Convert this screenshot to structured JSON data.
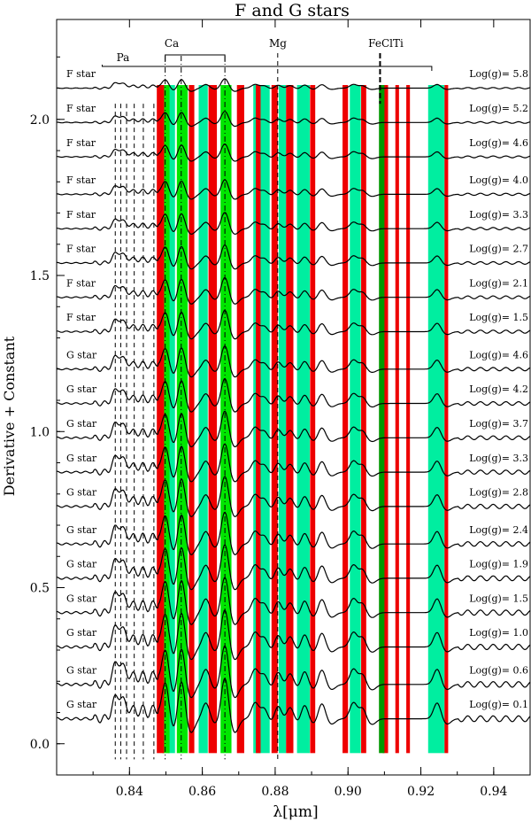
{
  "chart_data": {
    "type": "line",
    "title": "F and G stars",
    "xlabel": "λ[μm]",
    "ylabel": "Derivative + Constant",
    "xlim": [
      0.82,
      0.95
    ],
    "ylim": [
      -0.1,
      2.32
    ],
    "x_ticks": [
      0.84,
      0.86,
      0.88,
      0.9,
      0.92,
      0.94
    ],
    "x_tick_labels": [
      "0.84",
      "0.86",
      "0.88",
      "0.90",
      "0.92",
      "0.94"
    ],
    "y_ticks": [
      0.0,
      0.5,
      1.0,
      1.5,
      2.0
    ],
    "y_tick_labels": [
      "0.0",
      "0.5",
      "1.0",
      "1.5",
      "2.0"
    ],
    "line_annotations": {
      "pa": "Pa",
      "ca": "Ca",
      "mg": "Mg",
      "fecl": "FeClTi"
    },
    "paschen_lines": [
      0.8361,
      0.8376,
      0.8392,
      0.8413,
      0.8438,
      0.8467
    ],
    "ca_lines": [
      0.8498,
      0.8542,
      0.8662
    ],
    "mg_line": 0.8807,
    "fe_line": 0.9088,
    "green_bands": [
      [
        0.849,
        0.851
      ],
      [
        0.853,
        0.856
      ],
      [
        0.865,
        0.868
      ]
    ],
    "cyan_bands": [
      [
        0.8505,
        0.8525
      ],
      [
        0.859,
        0.8615
      ],
      [
        0.874,
        0.8785
      ],
      [
        0.881,
        0.883
      ],
      [
        0.886,
        0.8895
      ],
      [
        0.9005,
        0.9035
      ],
      [
        0.922,
        0.9265
      ]
    ],
    "red_bands": [
      [
        0.8475,
        0.8495
      ],
      [
        0.8563,
        0.8578
      ],
      [
        0.8617,
        0.864
      ],
      [
        0.8695,
        0.8715
      ],
      [
        0.8747,
        0.876
      ],
      [
        0.879,
        0.8807
      ],
      [
        0.883,
        0.885
      ],
      [
        0.8896,
        0.891
      ],
      [
        0.8985,
        0.9
      ],
      [
        0.9036,
        0.905
      ],
      [
        0.9095,
        0.911
      ],
      [
        0.913,
        0.914
      ],
      [
        0.916,
        0.917
      ],
      [
        0.9265,
        0.9275
      ]
    ],
    "dark_green_bands": [
      [
        0.9085,
        0.91
      ]
    ],
    "series": [
      {
        "label": "F star",
        "gravity": "Log(g)= 5.8",
        "offset": 2.1
      },
      {
        "label": "F star",
        "gravity": "Log(g)= 5.2",
        "offset": 1.99
      },
      {
        "label": "F star",
        "gravity": "Log(g)= 4.6",
        "offset": 1.88
      },
      {
        "label": "F star",
        "gravity": "Log(g)= 4.0",
        "offset": 1.76
      },
      {
        "label": "F star",
        "gravity": "Log(g)= 3.3",
        "offset": 1.65
      },
      {
        "label": "F star",
        "gravity": "Log(g)= 2.7",
        "offset": 1.54
      },
      {
        "label": "F star",
        "gravity": "Log(g)= 2.1",
        "offset": 1.43
      },
      {
        "label": "F star",
        "gravity": "Log(g)= 1.5",
        "offset": 1.32
      },
      {
        "label": "G star",
        "gravity": "Log(g)= 4.6",
        "offset": 1.2
      },
      {
        "label": "G star",
        "gravity": "Log(g)= 4.2",
        "offset": 1.09
      },
      {
        "label": "G star",
        "gravity": "Log(g)= 3.7",
        "offset": 0.98
      },
      {
        "label": "G star",
        "gravity": "Log(g)= 3.3",
        "offset": 0.87
      },
      {
        "label": "G star",
        "gravity": "Log(g)= 2.8",
        "offset": 0.76
      },
      {
        "label": "G star",
        "gravity": "Log(g)= 2.4",
        "offset": 0.64
      },
      {
        "label": "G star",
        "gravity": "Log(g)= 1.9",
        "offset": 0.53
      },
      {
        "label": "G star",
        "gravity": "Log(g)= 1.5",
        "offset": 0.42
      },
      {
        "label": "G star",
        "gravity": "Log(g)= 1.0",
        "offset": 0.31
      },
      {
        "label": "G star",
        "gravity": "Log(g)= 0.6",
        "offset": 0.19
      },
      {
        "label": "G star",
        "gravity": "Log(g)= 0.1",
        "offset": 0.08
      }
    ],
    "colors": {
      "green": "#00e600",
      "cyan": "#00eea0",
      "red": "#ee0000",
      "dark_green": "#009900",
      "line": "#000000"
    }
  }
}
